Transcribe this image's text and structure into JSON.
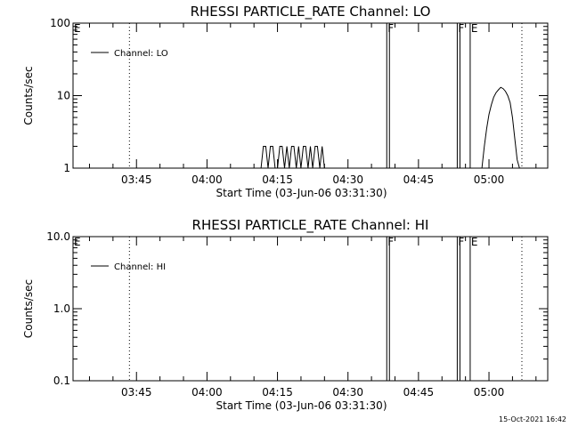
{
  "chart_data": [
    {
      "type": "line",
      "title": "RHESSI PARTICLE_RATE Channel: LO",
      "xlabel": "Start Time (03-Jun-06 03:31:30)",
      "ylabel": "Counts/sec",
      "y_scale": "log",
      "ylim": [
        1,
        100
      ],
      "y_tick_labels": [
        "1",
        "10",
        "100"
      ],
      "xlim": [
        "03:31:30",
        "05:12:30"
      ],
      "x_tick_labels": [
        "03:45",
        "04:00",
        "04:15",
        "04:30",
        "04:45",
        "05:00"
      ],
      "legend": {
        "entries": [
          "Channel: LO"
        ],
        "placement": "top-left"
      },
      "series": [
        {
          "name": "Channel: LO",
          "x": [
            "04:11:30",
            "04:12:00",
            "04:12:30",
            "04:13:00",
            "04:13:30",
            "04:14:00",
            "04:14:30",
            "04:15:00",
            "04:15:30",
            "04:16:00",
            "04:16:30",
            "04:17:00",
            "04:17:30",
            "04:18:00",
            "04:18:30",
            "04:19:00",
            "04:19:30",
            "04:20:00",
            "04:20:30",
            "04:21:00",
            "04:21:30",
            "04:22:00",
            "04:22:30",
            "04:23:00",
            "04:23:30",
            "04:24:00",
            "04:24:30",
            "04:25:00",
            "04:58:30",
            "04:59:00",
            "04:59:30",
            "05:00:00",
            "05:00:30",
            "05:01:00",
            "05:01:30",
            "05:02:00",
            "05:02:30",
            "05:03:00",
            "05:03:30",
            "05:04:00",
            "05:04:30",
            "05:05:00",
            "05:05:30",
            "05:06:00",
            "05:06:30"
          ],
          "y": [
            1,
            2,
            2,
            1,
            2,
            2,
            1,
            1,
            2,
            2,
            1,
            2,
            1,
            2,
            2,
            1,
            2,
            1,
            2,
            2,
            1,
            2,
            1,
            2,
            2,
            1,
            2,
            1,
            1,
            2,
            3.5,
            5.5,
            7.5,
            9.5,
            11,
            12,
            13,
            12.5,
            11.5,
            10,
            8,
            5,
            2.5,
            1.3,
            1
          ]
        }
      ],
      "segment_markers": [
        {
          "label": "E",
          "time": "03:31:30"
        },
        {
          "label": "F",
          "time": "04:38:15"
        },
        {
          "label": "F",
          "time": "04:53:15"
        },
        {
          "label": "E",
          "time": "04:56:00"
        }
      ],
      "dotted_lines": [
        "03:43:30",
        "05:07:00"
      ]
    },
    {
      "type": "line",
      "title": "RHESSI PARTICLE_RATE Channel: HI",
      "xlabel": "Start Time (03-Jun-06 03:31:30)",
      "ylabel": "Counts/sec",
      "y_scale": "log",
      "ylim": [
        0.1,
        10.0
      ],
      "y_tick_labels": [
        "0.1",
        "1.0",
        "10.0"
      ],
      "xlim": [
        "03:31:30",
        "05:12:30"
      ],
      "x_tick_labels": [
        "03:45",
        "04:00",
        "04:15",
        "04:30",
        "04:45",
        "05:00"
      ],
      "legend": {
        "entries": [
          "Channel: HI"
        ],
        "placement": "top-left"
      },
      "series": [
        {
          "name": "Channel: HI",
          "x": [],
          "y": []
        }
      ],
      "segment_markers": [
        {
          "label": "E",
          "time": "03:31:30"
        },
        {
          "label": "F",
          "time": "04:38:15"
        },
        {
          "label": "F",
          "time": "04:53:15"
        },
        {
          "label": "E",
          "time": "04:56:00"
        }
      ],
      "dotted_lines": [
        "03:43:30",
        "05:07:00"
      ]
    }
  ],
  "footer": {
    "timestamp": "15-Oct-2021 16:42"
  }
}
